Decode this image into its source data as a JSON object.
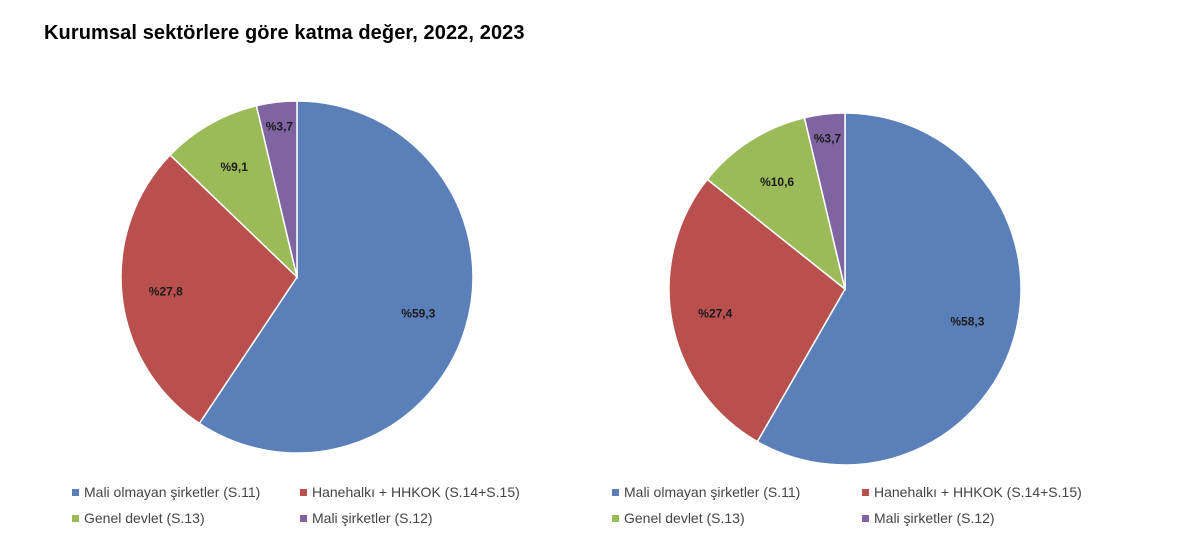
{
  "title": "Kurumsal sektörlere göre katma değer, 2022, 2023",
  "colors": {
    "mali_olmayan": "#5b7fb9",
    "hanehalki": "#b9504d",
    "genel_devlet": "#9bbb59",
    "mali": "#8064a2",
    "border": "#ffffff"
  },
  "legend": [
    {
      "label": "Mali olmayan şirketler (S.11)",
      "color": "#5b7fb9"
    },
    {
      "label": "Hanehalkı + HHKOK (S.14+S.15)",
      "color": "#b9504d"
    },
    {
      "label": "Genel devlet (S.13)",
      "color": "#9bbb59"
    },
    {
      "label": "Mali şirketler (S.12)",
      "color": "#8064a2"
    }
  ],
  "chart_data": [
    {
      "type": "pie",
      "title": "",
      "categories": [
        "Mali olmayan şirketler (S.11)",
        "Hanehalkı + HHKOK (S.14+S.15)",
        "Genel devlet (S.13)",
        "Mali şirketler (S.12)"
      ],
      "values": [
        59.3,
        27.8,
        9.1,
        3.7
      ],
      "labels": [
        "%59,3",
        "%27,8",
        "%9,1",
        "%3,7"
      ],
      "colors": [
        "#5b7fb9",
        "#b9504d",
        "#9bbb59",
        "#8064a2"
      ],
      "legend_position": "bottom"
    },
    {
      "type": "pie",
      "title": "",
      "categories": [
        "Mali olmayan şirketler (S.11)",
        "Hanehalkı + HHKOK (S.14+S.15)",
        "Genel devlet (S.13)",
        "Mali şirketler (S.12)"
      ],
      "values": [
        58.3,
        27.4,
        10.6,
        3.7
      ],
      "labels": [
        "%58,3",
        "%27,4",
        "%10,6",
        "%3,7"
      ],
      "colors": [
        "#5b7fb9",
        "#b9504d",
        "#9bbb59",
        "#8064a2"
      ],
      "legend_position": "bottom"
    }
  ]
}
